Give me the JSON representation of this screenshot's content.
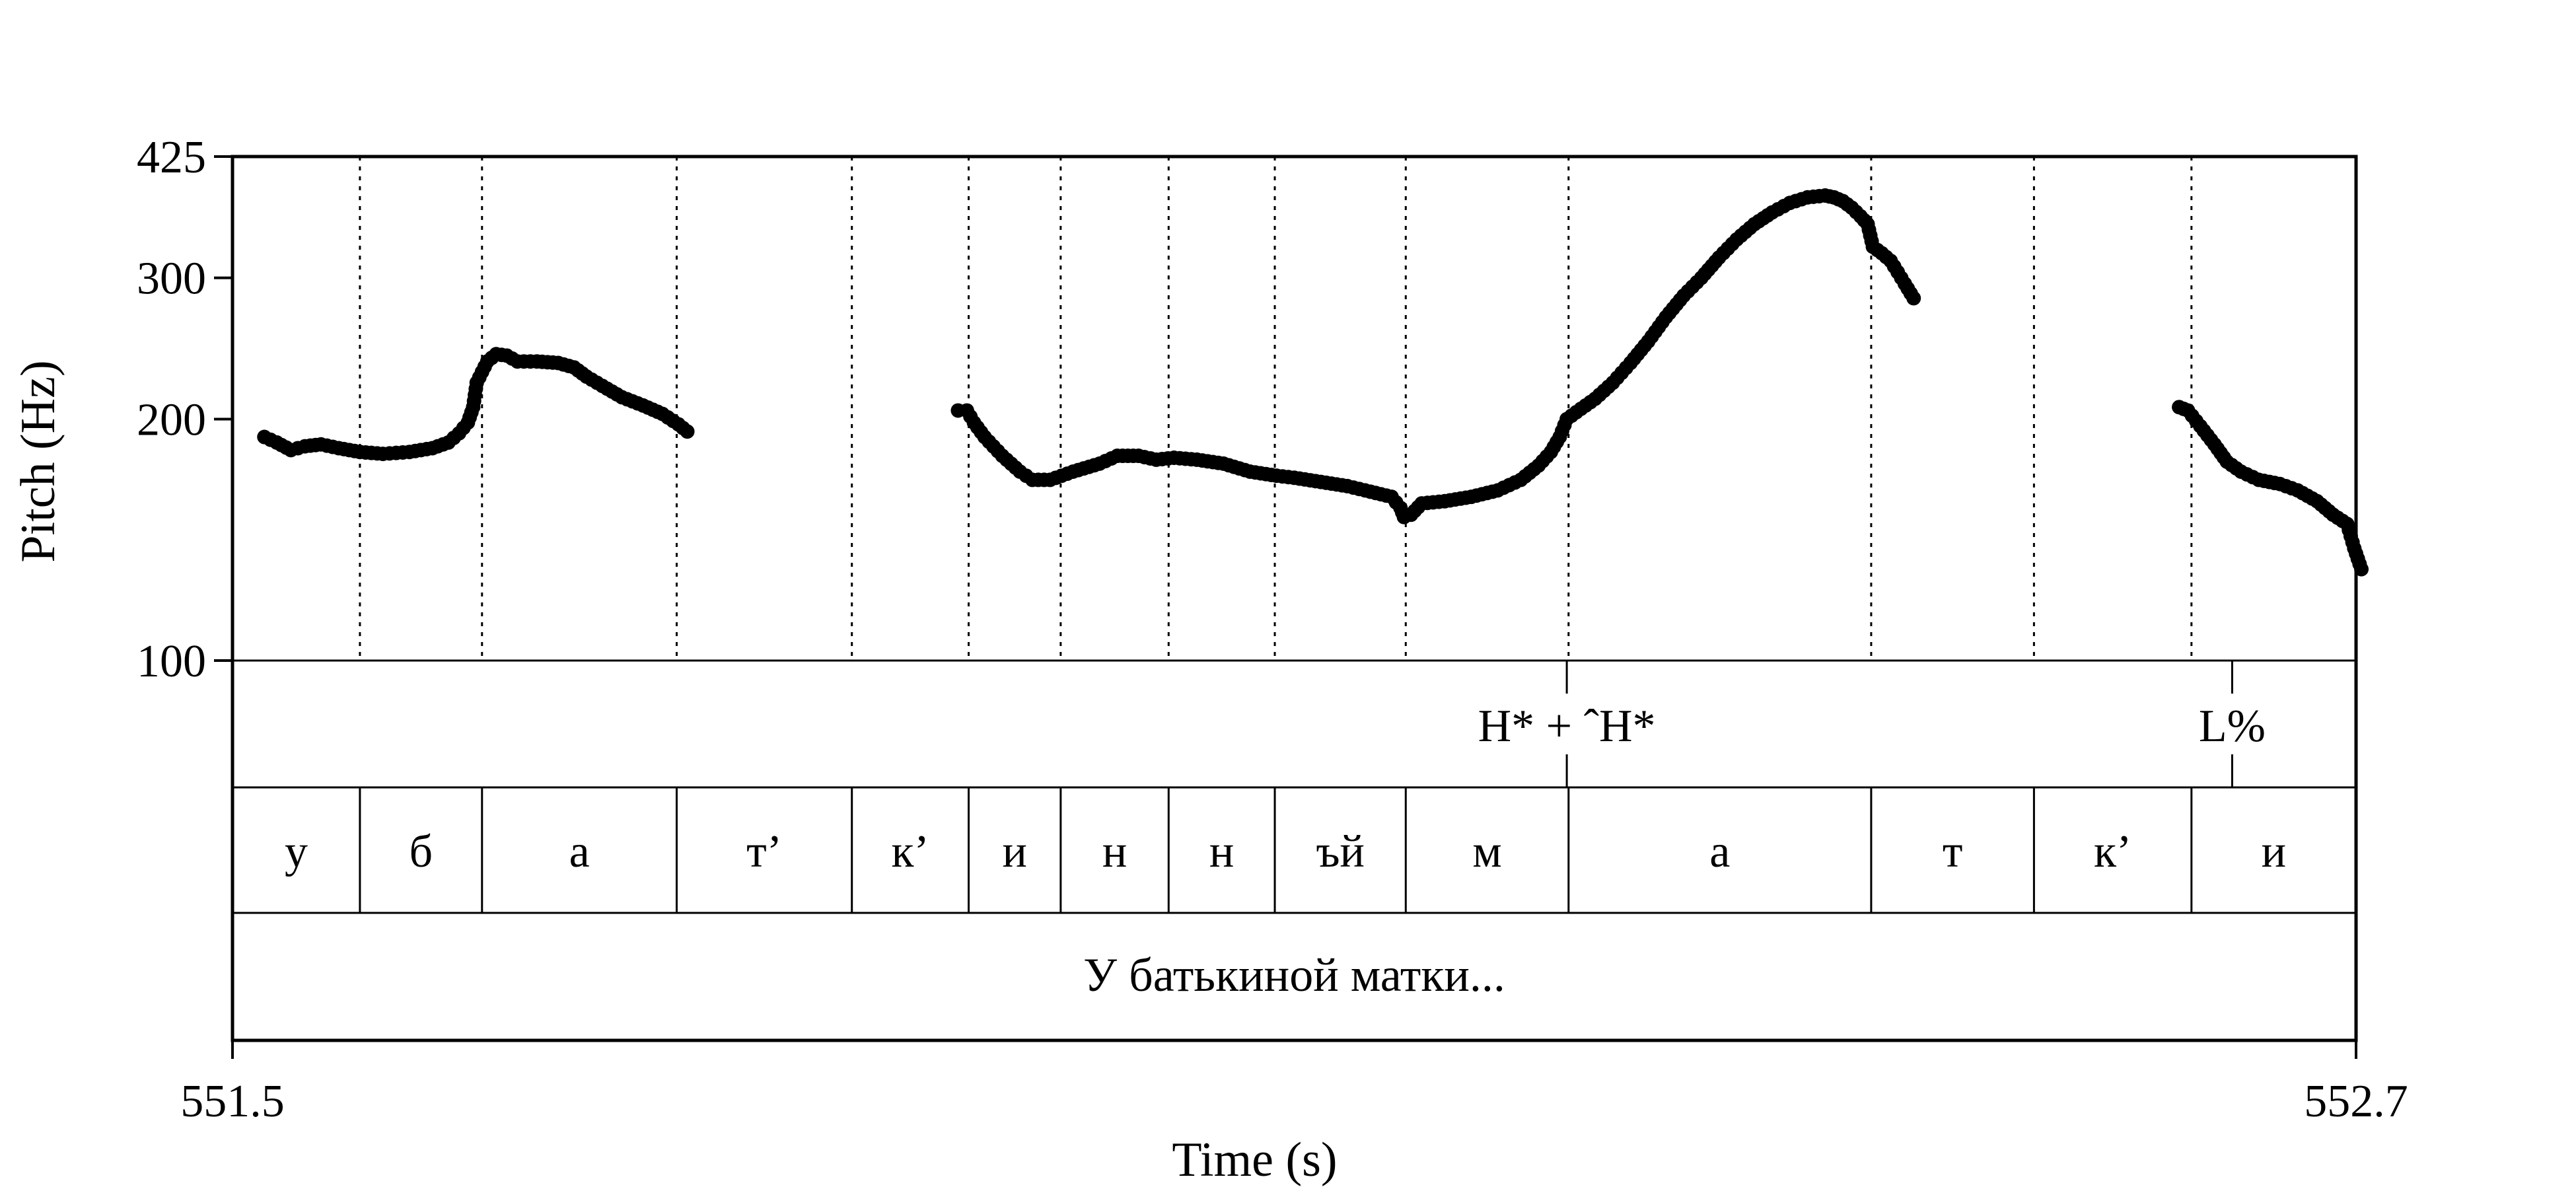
{
  "chart_data": {
    "type": "scatter",
    "xlabel": "Time (s)",
    "ylabel": "Pitch (Hz)",
    "xlim": [
      551.5,
      552.7
    ],
    "ylim": [
      100,
      425
    ],
    "y_scale": "log",
    "y_ticks": [
      "425",
      "300",
      "200",
      "100"
    ],
    "x_ticks": [
      "551.5",
      "552.7"
    ],
    "grid": "dotted vertical lines at segment boundaries",
    "tones": [
      {
        "label": "H* + ˆH*",
        "time": 552.254
      },
      {
        "label": "L%",
        "time": 552.63
      }
    ],
    "segments": [
      {
        "label": "у",
        "start": 551.5,
        "end": 551.572
      },
      {
        "label": "б",
        "start": 551.572,
        "end": 551.641
      },
      {
        "label": "а",
        "start": 551.641,
        "end": 551.751
      },
      {
        "label": "т’",
        "start": 551.751,
        "end": 551.85
      },
      {
        "label": "к’",
        "start": 551.85,
        "end": 551.916
      },
      {
        "label": "и",
        "start": 551.916,
        "end": 551.968
      },
      {
        "label": "н",
        "start": 551.968,
        "end": 552.029
      },
      {
        "label": "н",
        "start": 552.029,
        "end": 552.089
      },
      {
        "label": "ъй",
        "start": 552.089,
        "end": 552.163
      },
      {
        "label": "м",
        "start": 552.163,
        "end": 552.255
      },
      {
        "label": "а",
        "start": 552.255,
        "end": 552.426
      },
      {
        "label": "т",
        "start": 552.426,
        "end": 552.518
      },
      {
        "label": "к’",
        "start": 552.518,
        "end": 552.607
      },
      {
        "label": "и",
        "start": 552.607,
        "end": 552.7
      }
    ],
    "words": [
      {
        "label": "У батькиной матки...",
        "start": 551.5,
        "end": 552.7
      }
    ],
    "pitch_contours": [
      [
        [
          551.518,
          190
        ],
        [
          551.525,
          187
        ],
        [
          551.533,
          183
        ],
        [
          551.541,
          185
        ],
        [
          551.55,
          186
        ],
        [
          551.56,
          184
        ],
        [
          551.572,
          182
        ],
        [
          551.585,
          181
        ],
        [
          551.6,
          182
        ],
        [
          551.613,
          184
        ],
        [
          551.622,
          187
        ],
        [
          551.628,
          192
        ],
        [
          551.633,
          198
        ],
        [
          551.636,
          207
        ],
        [
          551.638,
          222
        ],
        [
          551.641,
          229
        ],
        [
          551.644,
          236
        ],
        [
          551.649,
          241
        ],
        [
          551.655,
          240
        ],
        [
          551.661,
          236
        ],
        [
          551.672,
          236
        ],
        [
          551.684,
          235
        ],
        [
          551.693,
          232
        ],
        [
          551.7,
          226
        ],
        [
          551.709,
          220
        ],
        [
          551.72,
          213
        ],
        [
          551.732,
          208
        ],
        [
          551.743,
          203
        ],
        [
          551.752,
          197
        ],
        [
          551.757,
          193
        ]
      ],
      [
        [
          551.91,
          205
        ],
        [
          551.915,
          205
        ],
        [
          551.919,
          198
        ],
        [
          551.925,
          190
        ],
        [
          551.935,
          180
        ],
        [
          551.945,
          172
        ],
        [
          551.952,
          168
        ],
        [
          551.962,
          168
        ],
        [
          551.975,
          172
        ],
        [
          551.99,
          176
        ],
        [
          552.0,
          180
        ],
        [
          552.012,
          180
        ],
        [
          552.022,
          178
        ],
        [
          552.032,
          179
        ],
        [
          552.045,
          178
        ],
        [
          552.06,
          176
        ],
        [
          552.075,
          172
        ],
        [
          552.09,
          170
        ],
        [
          552.1,
          169
        ],
        [
          552.115,
          167
        ],
        [
          552.13,
          165
        ],
        [
          552.14,
          163
        ],
        [
          552.155,
          160
        ],
        [
          552.16,
          155
        ],
        [
          552.162,
          151
        ],
        [
          552.166,
          152
        ],
        [
          552.172,
          157
        ],
        [
          552.185,
          158
        ],
        [
          552.2,
          160
        ],
        [
          552.215,
          163
        ],
        [
          552.228,
          168
        ],
        [
          552.238,
          175
        ],
        [
          552.245,
          182
        ],
        [
          552.25,
          190
        ],
        [
          552.254,
          200
        ],
        [
          552.262,
          206
        ],
        [
          552.27,
          212
        ],
        [
          552.28,
          222
        ],
        [
          552.29,
          235
        ],
        [
          552.3,
          250
        ],
        [
          552.31,
          268
        ],
        [
          552.32,
          285
        ],
        [
          552.33,
          300
        ],
        [
          552.34,
          318
        ],
        [
          552.35,
          335
        ],
        [
          552.36,
          350
        ],
        [
          552.37,
          362
        ],
        [
          552.38,
          372
        ],
        [
          552.39,
          378
        ],
        [
          552.4,
          380
        ],
        [
          552.405,
          378
        ],
        [
          552.41,
          374
        ],
        [
          552.415,
          367
        ],
        [
          552.42,
          358
        ],
        [
          552.424,
          350
        ],
        [
          552.427,
          328
        ],
        [
          552.432,
          322
        ],
        [
          552.437,
          315
        ],
        [
          552.441,
          305
        ],
        [
          552.445,
          295
        ],
        [
          552.45,
          283
        ]
      ],
      [
        [
          552.6,
          207
        ],
        [
          552.605,
          205
        ],
        [
          552.612,
          196
        ],
        [
          552.62,
          186
        ],
        [
          552.627,
          177
        ],
        [
          552.635,
          172
        ],
        [
          552.645,
          168
        ],
        [
          552.657,
          166
        ],
        [
          552.667,
          163
        ],
        [
          552.678,
          158
        ],
        [
          552.687,
          152
        ],
        [
          552.695,
          148
        ],
        [
          552.699,
          138
        ],
        [
          552.703,
          130
        ]
      ]
    ]
  }
}
